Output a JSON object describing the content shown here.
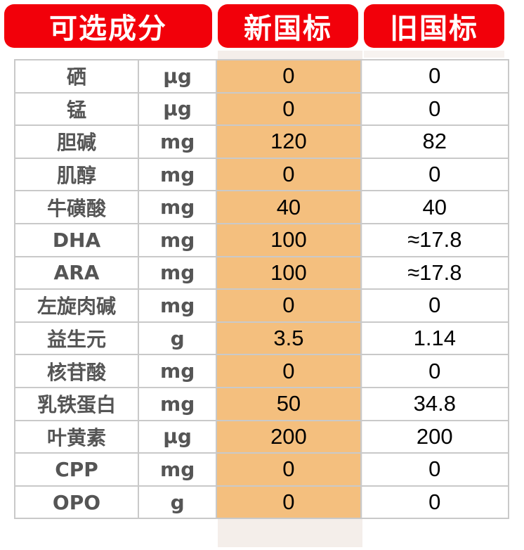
{
  "headers": {
    "optional": "可选成分",
    "new_standard": "新国标",
    "old_standard": "旧国标"
  },
  "rows": [
    {
      "name": "硒",
      "unit": "μg",
      "new": "0",
      "old": "0"
    },
    {
      "name": "锰",
      "unit": "μg",
      "new": "0",
      "old": "0"
    },
    {
      "name": "胆碱",
      "unit": "mg",
      "new": "120",
      "old": "82"
    },
    {
      "name": "肌醇",
      "unit": "mg",
      "new": "0",
      "old": "0"
    },
    {
      "name": "牛磺酸",
      "unit": "mg",
      "new": "40",
      "old": "40"
    },
    {
      "name": "DHA",
      "unit": "mg",
      "new": "100",
      "old": "≈17.8"
    },
    {
      "name": "ARA",
      "unit": "mg",
      "new": "100",
      "old": "≈17.8"
    },
    {
      "name": "左旋肉碱",
      "unit": "mg",
      "new": "0",
      "old": "0"
    },
    {
      "name": "益生元",
      "unit": "g",
      "new": "3.5",
      "old": "1.14"
    },
    {
      "name": "核苷酸",
      "unit": "mg",
      "new": "0",
      "old": "0"
    },
    {
      "name": "乳铁蛋白",
      "unit": "mg",
      "new": "50",
      "old": "34.8"
    },
    {
      "name": "叶黄素",
      "unit": "μg",
      "new": "200",
      "old": "200"
    },
    {
      "name": "CPP",
      "unit": "mg",
      "new": "0",
      "old": "0"
    },
    {
      "name": "OPO",
      "unit": "g",
      "new": "0",
      "old": "0"
    }
  ],
  "colors": {
    "header_red": "#f2000a",
    "new_column_orange": "#f4bf7e",
    "grid_line": "#c9c9c9",
    "label_gray": "#555555"
  }
}
